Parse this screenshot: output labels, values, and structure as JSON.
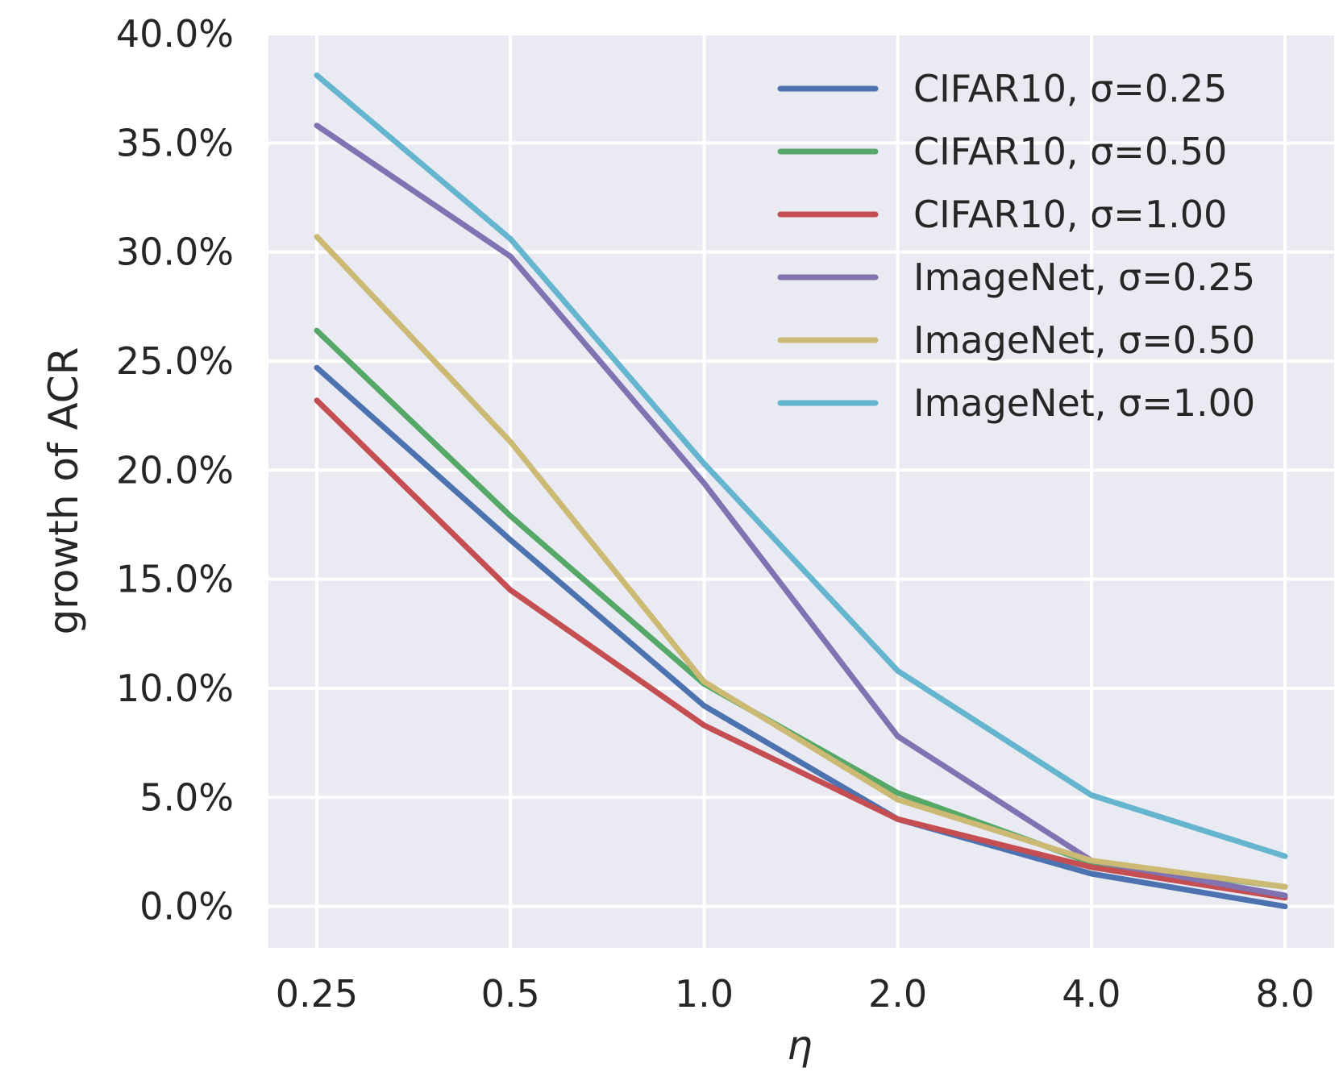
{
  "chart_data": {
    "type": "line",
    "title": "",
    "xlabel": "η",
    "ylabel": "growth of ACR",
    "categories": [
      "0.25",
      "0.5",
      "1.0",
      "2.0",
      "4.0",
      "8.0"
    ],
    "yticks": [
      "0.0%",
      "5.0%",
      "10.0%",
      "15.0%",
      "20.0%",
      "25.0%",
      "30.0%",
      "35.0%",
      "40.0%"
    ],
    "ylim": [
      -1.9,
      40.0
    ],
    "grid": true,
    "legend_position": "top-right",
    "series": [
      {
        "name": "CIFAR10, σ=0.25",
        "color": "#4c72b0",
        "values": [
          24.7,
          16.8,
          9.2,
          4.0,
          1.5,
          0.0
        ]
      },
      {
        "name": "CIFAR10, σ=0.50",
        "color": "#55a868",
        "values": [
          26.4,
          17.9,
          10.2,
          5.2,
          2.0,
          0.9
        ]
      },
      {
        "name": "CIFAR10, σ=1.00",
        "color": "#c44e52",
        "values": [
          23.2,
          14.5,
          8.3,
          4.0,
          1.8,
          0.4
        ]
      },
      {
        "name": "ImageNet, σ=0.25",
        "color": "#8172b2",
        "values": [
          35.8,
          29.8,
          19.4,
          7.8,
          2.1,
          0.5
        ]
      },
      {
        "name": "ImageNet, σ=0.50",
        "color": "#ccb974",
        "values": [
          30.7,
          21.3,
          10.3,
          4.9,
          2.1,
          0.9
        ]
      },
      {
        "name": "ImageNet, σ=1.00",
        "color": "#64b5cd",
        "values": [
          38.1,
          30.6,
          20.3,
          10.8,
          5.1,
          2.3
        ]
      }
    ]
  }
}
